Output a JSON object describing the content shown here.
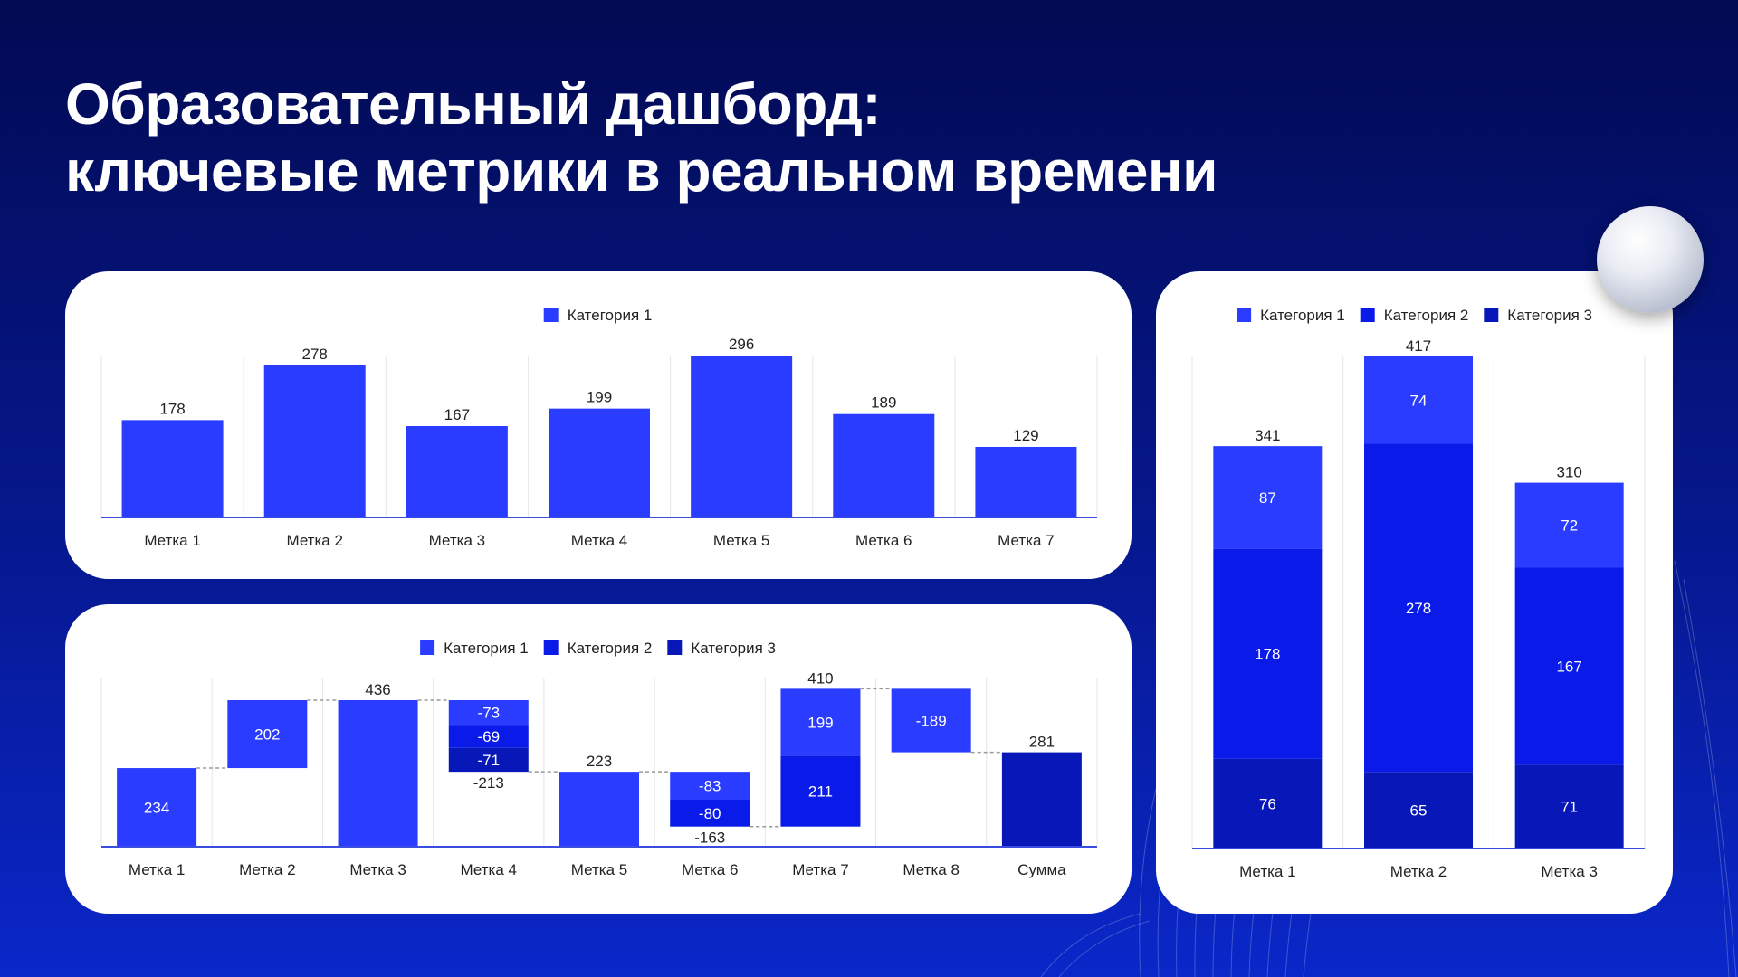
{
  "title": {
    "line1": "Образовательный дашборд:",
    "line2": "ключевые метрики в реальном времени"
  },
  "colors": {
    "cat1": "#2a3cff",
    "cat2": "#0a1ae8",
    "cat3": "#0818b8",
    "axis": "#3b4ce0",
    "grid": "#e6e6e6",
    "connector": "#9a9a9a"
  },
  "chart_data": [
    {
      "id": "top-bar",
      "type": "bar",
      "legend": [
        "Категория 1"
      ],
      "categories": [
        "Метка 1",
        "Метка 2",
        "Метка 3",
        "Метка 4",
        "Метка 5",
        "Метка 6",
        "Метка 7"
      ],
      "series": [
        {
          "name": "Категория 1",
          "values": [
            178,
            278,
            167,
            199,
            296,
            189,
            129
          ]
        }
      ],
      "ylim": [
        0,
        296
      ]
    },
    {
      "id": "waterfall",
      "type": "bar",
      "subtype": "waterfall",
      "legend": [
        "Категория 1",
        "Категория 2",
        "Категория 3"
      ],
      "categories": [
        "Метка 1",
        "Метка 2",
        "Метка 3",
        "Метка 4",
        "Метка 5",
        "Метка 6",
        "Метка 7",
        "Метка 8",
        "Сумма"
      ],
      "steps": [
        {
          "label": "Метка 1",
          "segments": [
            {
              "value": 234,
              "series": "Категория 1",
              "text": "234"
            }
          ]
        },
        {
          "label": "Метка 2",
          "segments": [
            {
              "value": 202,
              "series": "Категория 1",
              "text": "202"
            }
          ]
        },
        {
          "label": "Метка 3",
          "total": true,
          "top_label": "436",
          "segments": [
            {
              "value": 436,
              "series": "Категория 1",
              "text": ""
            }
          ]
        },
        {
          "label": "Метка 4",
          "bottom_label": "-213",
          "segments": [
            {
              "value": -73,
              "series": "Категория 1",
              "text": "-73"
            },
            {
              "value": -69,
              "series": "Категория 2",
              "text": "-69"
            },
            {
              "value": -71,
              "series": "Категория 3",
              "text": "-71"
            }
          ]
        },
        {
          "label": "Метка 5",
          "total": true,
          "top_label": "223",
          "segments": [
            {
              "value": 223,
              "series": "Категория 1",
              "text": ""
            }
          ]
        },
        {
          "label": "Метка 6",
          "bottom_label": "-163",
          "segments": [
            {
              "value": -83,
              "series": "Категория 1",
              "text": "-83"
            },
            {
              "value": -80,
              "series": "Категория 2",
              "text": "-80"
            }
          ]
        },
        {
          "label": "Метка 7",
          "top_label": "410",
          "segments": [
            {
              "value": 211,
              "series": "Категория 2",
              "text": "211"
            },
            {
              "value": 199,
              "series": "Категория 1",
              "text": "199"
            }
          ]
        },
        {
          "label": "Метка 8",
          "segments": [
            {
              "value": -189,
              "series": "Категория 1",
              "text": "-189"
            }
          ]
        },
        {
          "label": "Сумма",
          "total": true,
          "top_label": "281",
          "segments": [
            {
              "value": 281,
              "series": "Категория 3",
              "text": ""
            }
          ]
        }
      ],
      "ylim": [
        0,
        450
      ]
    },
    {
      "id": "stacked",
      "type": "bar",
      "subtype": "stacked",
      "legend": [
        "Категория 1",
        "Категория 2",
        "Категория 3"
      ],
      "categories": [
        "Метка 1",
        "Метка 2",
        "Метка 3"
      ],
      "series": [
        {
          "name": "Категория 3",
          "values": [
            76,
            65,
            71
          ]
        },
        {
          "name": "Категория 2",
          "values": [
            178,
            278,
            167
          ]
        },
        {
          "name": "Категория 1",
          "values": [
            87,
            74,
            72
          ]
        }
      ],
      "totals": [
        341,
        417,
        310
      ],
      "ylim": [
        0,
        417
      ]
    }
  ]
}
